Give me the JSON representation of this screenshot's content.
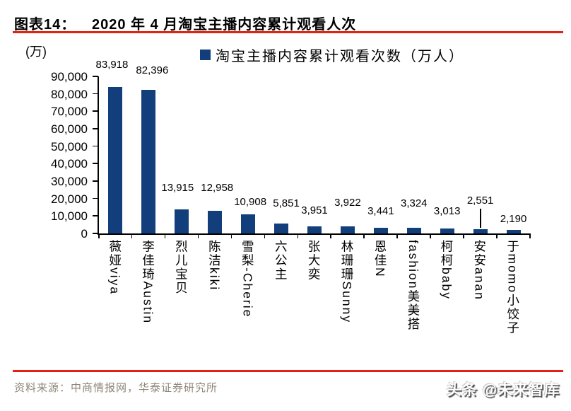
{
  "header": {
    "tag": "图表14：",
    "title": "2020 年 4 月淘宝主播内容累计观看人次"
  },
  "legend": {
    "label": "淘宝主播内容累计观看次数（万人）"
  },
  "chart_data": {
    "type": "bar",
    "title": "2020 年 4 月淘宝主播内容累计观看人次",
    "unit_label": "(万)",
    "legend_entries": [
      "淘宝主播内容累计观看次数（万人）"
    ],
    "legend_position": "top",
    "grid": false,
    "ylim": [
      0,
      90000
    ],
    "ytick_step": 10000,
    "ytick_labels": [
      "0",
      "10,000",
      "20,000",
      "30,000",
      "40,000",
      "50,000",
      "60,000",
      "70,000",
      "80,000",
      "90,000"
    ],
    "categories": [
      "薇娅viya",
      "李佳琦Austin",
      "烈儿宝贝",
      "陈洁kiki",
      "雪梨-Cherie",
      "六公主",
      "张大奕",
      "林珊珊Sunny",
      "恩佳N",
      "fashion美美搭",
      "柯柯baby",
      "安安anan",
      "于momo小饺子"
    ],
    "values": [
      83918,
      82396,
      13915,
      12958,
      10908,
      5851,
      3951,
      3922,
      3441,
      3324,
      3013,
      2551,
      2190
    ],
    "value_labels": [
      "83,918",
      "82,396",
      "13,915",
      "12,958",
      "10,908",
      "5,851",
      "3,951",
      "3,922",
      "3,441",
      "3,324",
      "3,013",
      "2,551",
      "2,190"
    ],
    "bar_color": "#123E7C",
    "label_layout": [
      {
        "dx": -5,
        "bottom": 100,
        "leader": false
      },
      {
        "dx": 5,
        "bottom": 108,
        "leader": false
      },
      {
        "dx": -6,
        "bottom": 274,
        "leader": false
      },
      {
        "dx": 3,
        "bottom": 274,
        "leader": false
      },
      {
        "dx": 3,
        "bottom": 294,
        "leader": false
      },
      {
        "dx": 7,
        "bottom": 296,
        "leader": false
      },
      {
        "dx": 0,
        "bottom": 306,
        "leader": false
      },
      {
        "dx": 0,
        "bottom": 295,
        "leader": false
      },
      {
        "dx": 0,
        "bottom": 307,
        "leader": false
      },
      {
        "dx": 0,
        "bottom": 296,
        "leader": false
      },
      {
        "dx": 0,
        "bottom": 307,
        "leader": false
      },
      {
        "dx": 0,
        "bottom": 292,
        "leader": true
      },
      {
        "dx": 0,
        "bottom": 318,
        "leader": false
      }
    ]
  },
  "colors": {
    "bar": "#123E7C",
    "rule_red": "#E32213",
    "source_text": "#8E8577"
  },
  "footer": {
    "source": "资料来源：中商情报网，华泰证券研究所",
    "watermark": "头条 @未来智库"
  }
}
